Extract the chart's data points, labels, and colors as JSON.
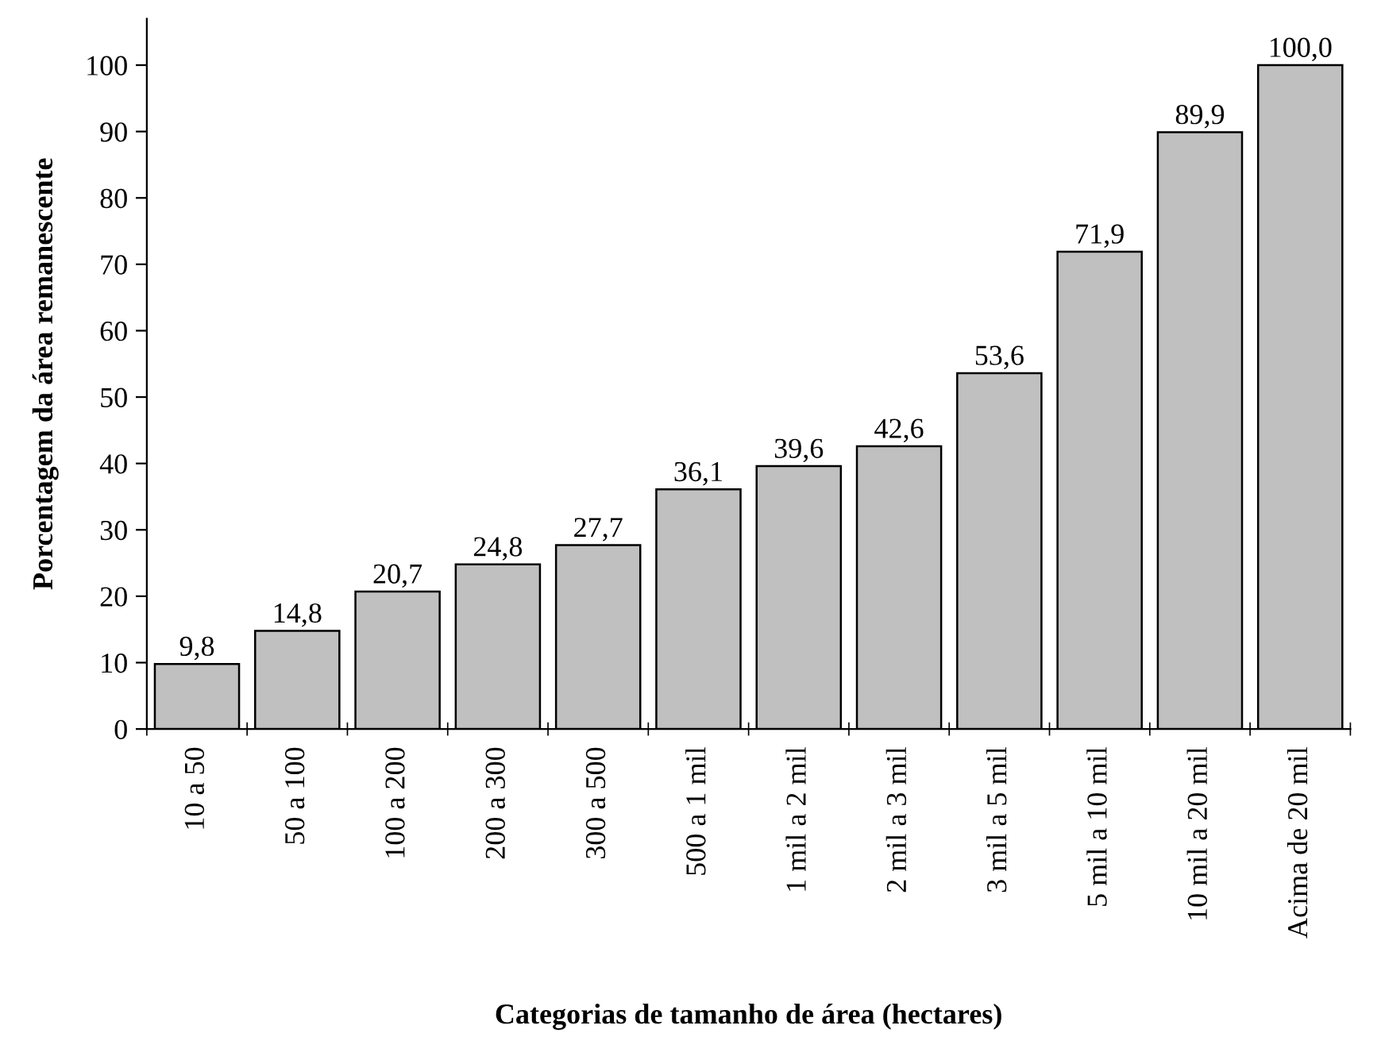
{
  "chart_data": {
    "type": "bar",
    "xlabel": "Categorias de tamanho de área (hectares)",
    "ylabel": "Porcentagem da área remanescente",
    "categories": [
      "10 a 50",
      "50 a 100",
      "100 a 200",
      "200 a 300",
      "300 a 500",
      "500 a 1 mil",
      "1 mil a 2 mil",
      "2 mil a 3 mil",
      "3 mil a 5 mil",
      "5 mil a 10 mil",
      "10 mil a 20 mil",
      "Acima de 20 mil"
    ],
    "values": [
      9.8,
      14.8,
      20.7,
      24.8,
      27.7,
      36.1,
      39.6,
      42.6,
      53.6,
      71.9,
      89.9,
      100.0
    ],
    "value_labels": [
      "9,8",
      "14,8",
      "20,7",
      "24,8",
      "27,7",
      "36,1",
      "39,6",
      "42,6",
      "53,6",
      "71,9",
      "89,9",
      "100,0"
    ],
    "color": "#c0c0c0",
    "ylim": [
      0,
      107
    ],
    "yticks": [
      0,
      10,
      20,
      30,
      40,
      50,
      60,
      70,
      80,
      90,
      100
    ],
    "grid": false
  }
}
